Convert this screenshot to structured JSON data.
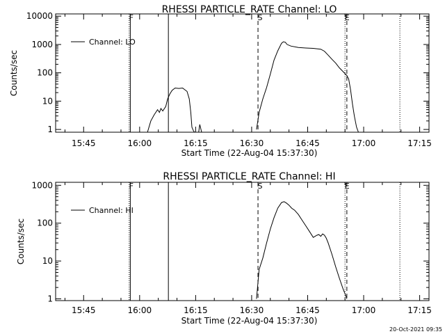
{
  "footer_timestamp": "20-Oct-2021 09:35",
  "chart_data": [
    {
      "type": "line",
      "title": "RHESSI PARTICLE_RATE Channel: LO",
      "xlabel": "Start Time (22-Aug-04 15:37:30)",
      "ylabel": "Counts/sec",
      "yscale": "log",
      "x_unit": "minutes after 15:37:30",
      "xlim": [
        0,
        100
      ],
      "ylim": [
        0.8,
        12000
      ],
      "x_ticks": [
        {
          "x": 7.5,
          "label": "15:45"
        },
        {
          "x": 22.5,
          "label": "16:00"
        },
        {
          "x": 37.5,
          "label": "16:15"
        },
        {
          "x": 52.5,
          "label": "16:30"
        },
        {
          "x": 67.5,
          "label": "16:45"
        },
        {
          "x": 82.5,
          "label": "17:00"
        },
        {
          "x": 97.5,
          "label": "17:15"
        }
      ],
      "y_ticks": [
        {
          "y": 1,
          "label": "1"
        },
        {
          "y": 10,
          "label": "10"
        },
        {
          "y": 100,
          "label": "100"
        },
        {
          "y": 1000,
          "label": "1000"
        },
        {
          "y": 10000,
          "label": "10000"
        }
      ],
      "legend": {
        "position": "top-left",
        "label": "Channel: LO"
      },
      "vlines": [
        {
          "x": 19.7,
          "style": "dotted",
          "label": "F"
        },
        {
          "x": 20.0,
          "style": "solid",
          "label": ""
        },
        {
          "x": 30.2,
          "style": "solid",
          "label": ""
        },
        {
          "x": 54.2,
          "style": "dashed",
          "label": "S"
        },
        {
          "x": 77.5,
          "style": "dotted",
          "label": "E"
        },
        {
          "x": 78.0,
          "style": "dashed",
          "label": ""
        },
        {
          "x": 92.2,
          "style": "dotted",
          "label": ""
        }
      ],
      "series": [
        {
          "name": "Channel: LO",
          "segments": [
            {
              "x": [
                24.6,
                25.5,
                26.4,
                27.3,
                27.8,
                28.2,
                28.7,
                29.5,
                30.0,
                30.6,
                31.2,
                32.0,
                33.0,
                34.0,
                35.2,
                35.8,
                36.2,
                36.5,
                36.9,
                37.2
              ],
              "y": [
                0.8,
                2.0,
                3.3,
                5.0,
                4.0,
                5.5,
                4.5,
                6.5,
                12.0,
                18.0,
                24.0,
                29.0,
                28.0,
                29.0,
                22.0,
                12.0,
                4.0,
                1.2,
                0.9,
                0.8
              ]
            },
            {
              "x": [
                38.3,
                38.6,
                39.1
              ],
              "y": [
                0.8,
                1.5,
                0.8
              ]
            },
            {
              "x": [
                53.8,
                54.5,
                55.5,
                56.5,
                57.5,
                58.5,
                59.5,
                60.5,
                61.0,
                61.5,
                62.0,
                63.0,
                65.0,
                67.0,
                69.0,
                71.0,
                72.0,
                73.0,
                74.0,
                75.0,
                76.0,
                77.0,
                78.0,
                78.5,
                79.0,
                79.5,
                80.0,
                80.6,
                81.1
              ],
              "y": [
                1.0,
                4.0,
                12.0,
                30.0,
                90.0,
                280.0,
                600.0,
                1100.0,
                1250.0,
                1200.0,
                1000.0,
                880.0,
                780.0,
                750.0,
                730.0,
                680.0,
                580.0,
                420.0,
                300.0,
                220.0,
                150.0,
                110.0,
                80.0,
                60.0,
                25.0,
                8.0,
                3.0,
                1.2,
                0.8
              ]
            }
          ]
        }
      ]
    },
    {
      "type": "line",
      "title": "RHESSI PARTICLE_RATE Channel: HI",
      "xlabel": "Start Time (22-Aug-04 15:37:30)",
      "ylabel": "Counts/sec",
      "yscale": "log",
      "x_unit": "minutes after 15:37:30",
      "xlim": [
        0,
        100
      ],
      "ylim": [
        0.9,
        1200
      ],
      "x_ticks": [
        {
          "x": 7.5,
          "label": "15:45"
        },
        {
          "x": 22.5,
          "label": "16:00"
        },
        {
          "x": 37.5,
          "label": "16:15"
        },
        {
          "x": 52.5,
          "label": "16:30"
        },
        {
          "x": 67.5,
          "label": "16:45"
        },
        {
          "x": 82.5,
          "label": "17:00"
        },
        {
          "x": 97.5,
          "label": "17:15"
        }
      ],
      "y_ticks": [
        {
          "y": 1,
          "label": "1"
        },
        {
          "y": 10,
          "label": "10"
        },
        {
          "y": 100,
          "label": "100"
        },
        {
          "y": 1000,
          "label": "1000"
        }
      ],
      "legend": {
        "position": "top-left",
        "label": "Channel: HI"
      },
      "vlines": [
        {
          "x": 19.7,
          "style": "dotted",
          "label": "F"
        },
        {
          "x": 20.0,
          "style": "solid",
          "label": ""
        },
        {
          "x": 30.2,
          "style": "solid",
          "label": ""
        },
        {
          "x": 54.2,
          "style": "dashed",
          "label": "S"
        },
        {
          "x": 77.5,
          "style": "dotted",
          "label": "E"
        },
        {
          "x": 78.0,
          "style": "dashed",
          "label": ""
        },
        {
          "x": 92.2,
          "style": "dotted",
          "label": ""
        }
      ],
      "series": [
        {
          "name": "Channel: HI",
          "segments": [
            {
              "x": [
                53.8,
                54.5,
                55.5,
                56.5,
                57.5,
                58.5,
                59.5,
                60.5,
                61.2,
                61.8,
                62.5,
                63.2,
                64.0,
                65.0,
                66.0,
                67.0,
                68.0,
                69.0,
                70.0,
                70.5,
                71.0,
                71.5,
                72.0,
                72.5,
                73.0,
                74.0,
                75.0,
                76.0,
                77.0,
                77.6,
                78.0
              ],
              "y": [
                1.0,
                6.0,
                12.0,
                30.0,
                70.0,
                140.0,
                250.0,
                350.0,
                370.0,
                340.0,
                300.0,
                250.0,
                220.0,
                170.0,
                120.0,
                85.0,
                60.0,
                42.0,
                48.0,
                50.0,
                45.0,
                52.0,
                48.0,
                40.0,
                30.0,
                15.0,
                7.0,
                3.5,
                1.8,
                1.3,
                1.0
              ]
            }
          ]
        }
      ]
    }
  ]
}
